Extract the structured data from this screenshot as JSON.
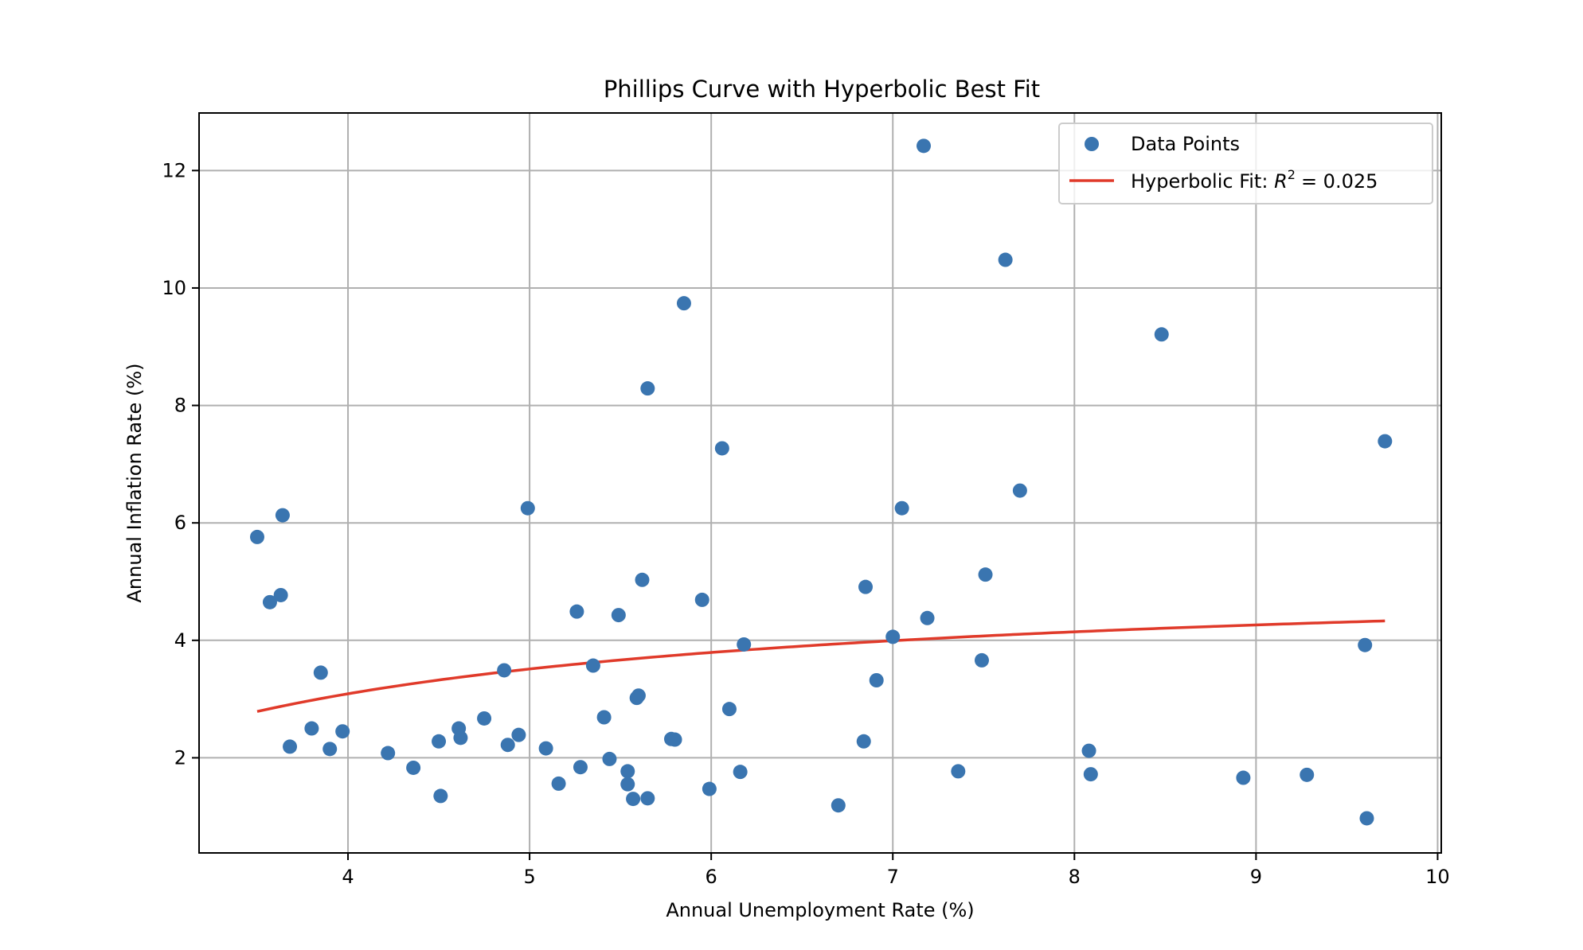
{
  "chart_data": {
    "type": "scatter",
    "title": "Phillips Curve with Hyperbolic Best Fit",
    "xlabel": "Annual Unemployment Rate (%)",
    "ylabel": "Annual Inflation Rate (%)",
    "xlim": [
      3.18,
      10.02
    ],
    "ylim": [
      0.38,
      12.98
    ],
    "xticks": [
      4,
      5,
      6,
      7,
      8,
      9,
      10
    ],
    "yticks": [
      2,
      4,
      6,
      8,
      10,
      12
    ],
    "grid": true,
    "legend_position": "top-right",
    "series": [
      {
        "name": "Data Points",
        "kind": "scatter",
        "color": "#3a75b0",
        "points": [
          [
            3.5,
            5.76
          ],
          [
            3.57,
            4.65
          ],
          [
            3.64,
            6.13
          ],
          [
            3.63,
            4.77
          ],
          [
            3.68,
            2.19
          ],
          [
            3.8,
            2.5
          ],
          [
            3.85,
            3.45
          ],
          [
            3.9,
            2.15
          ],
          [
            3.97,
            2.45
          ],
          [
            4.22,
            2.08
          ],
          [
            4.36,
            1.83
          ],
          [
            4.5,
            2.28
          ],
          [
            4.51,
            1.35
          ],
          [
            4.61,
            2.5
          ],
          [
            4.62,
            2.34
          ],
          [
            4.75,
            2.67
          ],
          [
            4.86,
            3.49
          ],
          [
            4.88,
            2.22
          ],
          [
            4.94,
            2.39
          ],
          [
            4.99,
            6.25
          ],
          [
            5.09,
            2.16
          ],
          [
            5.16,
            1.56
          ],
          [
            5.26,
            4.49
          ],
          [
            5.28,
            1.84
          ],
          [
            5.35,
            3.57
          ],
          [
            5.41,
            2.69
          ],
          [
            5.44,
            1.98
          ],
          [
            5.49,
            4.43
          ],
          [
            5.54,
            1.77
          ],
          [
            5.54,
            1.55
          ],
          [
            5.57,
            1.3
          ],
          [
            5.59,
            3.02
          ],
          [
            5.6,
            3.06
          ],
          [
            5.62,
            5.03
          ],
          [
            5.65,
            8.29
          ],
          [
            5.65,
            1.31
          ],
          [
            5.78,
            2.32
          ],
          [
            5.8,
            2.31
          ],
          [
            5.85,
            9.74
          ],
          [
            5.95,
            4.69
          ],
          [
            5.99,
            1.47
          ],
          [
            6.06,
            7.27
          ],
          [
            6.1,
            2.83
          ],
          [
            6.16,
            1.76
          ],
          [
            6.18,
            3.93
          ],
          [
            6.7,
            1.19
          ],
          [
            6.84,
            2.28
          ],
          [
            6.85,
            4.91
          ],
          [
            6.91,
            3.32
          ],
          [
            7.0,
            4.06
          ],
          [
            7.05,
            6.25
          ],
          [
            7.17,
            12.42
          ],
          [
            7.19,
            4.38
          ],
          [
            7.36,
            1.77
          ],
          [
            7.49,
            3.66
          ],
          [
            7.51,
            5.12
          ],
          [
            7.62,
            10.48
          ],
          [
            7.7,
            6.55
          ],
          [
            8.08,
            2.12
          ],
          [
            8.09,
            1.72
          ],
          [
            8.48,
            9.21
          ],
          [
            8.93,
            1.66
          ],
          [
            9.28,
            1.71
          ],
          [
            9.6,
            3.92
          ],
          [
            9.61,
            0.97
          ],
          [
            9.71,
            7.39
          ]
        ]
      },
      {
        "name": "Hyperbolic Fit",
        "kind": "line",
        "color": "#e03a2a",
        "label_suffix": "= 0.025",
        "a": 5.2,
        "b": -8.44,
        "x_range": [
          3.5,
          9.71
        ]
      }
    ]
  },
  "legend": {
    "scatter_label": "Data Points",
    "fit_label_prefix": "Hyperbolic Fit:",
    "fit_label_r": "R",
    "fit_label_sup": "2",
    "fit_label_value": "= 0.025"
  }
}
